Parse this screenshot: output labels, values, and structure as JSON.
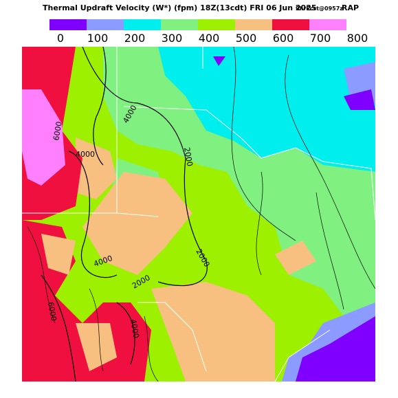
{
  "header": {
    "title": "Thermal Updraft Velocity (W*) (fpm) 18Z(13cdt) FRI 06 Jun 2025",
    "forecast": "9hrFcst@0957z",
    "model": "RAP"
  },
  "legend": {
    "labels": [
      "0",
      "100",
      "200",
      "300",
      "400",
      "500",
      "600",
      "700",
      "800"
    ],
    "colors": [
      "#8000ff",
      "#8c9bff",
      "#00eeee",
      "#80f080",
      "#9cf000",
      "#f8c080",
      "#f01040",
      "#ff80ff"
    ]
  },
  "contours": [
    "6000",
    "4000",
    "4000",
    "2000",
    "2000",
    "4000",
    "2000",
    "6000",
    "4000"
  ]
}
